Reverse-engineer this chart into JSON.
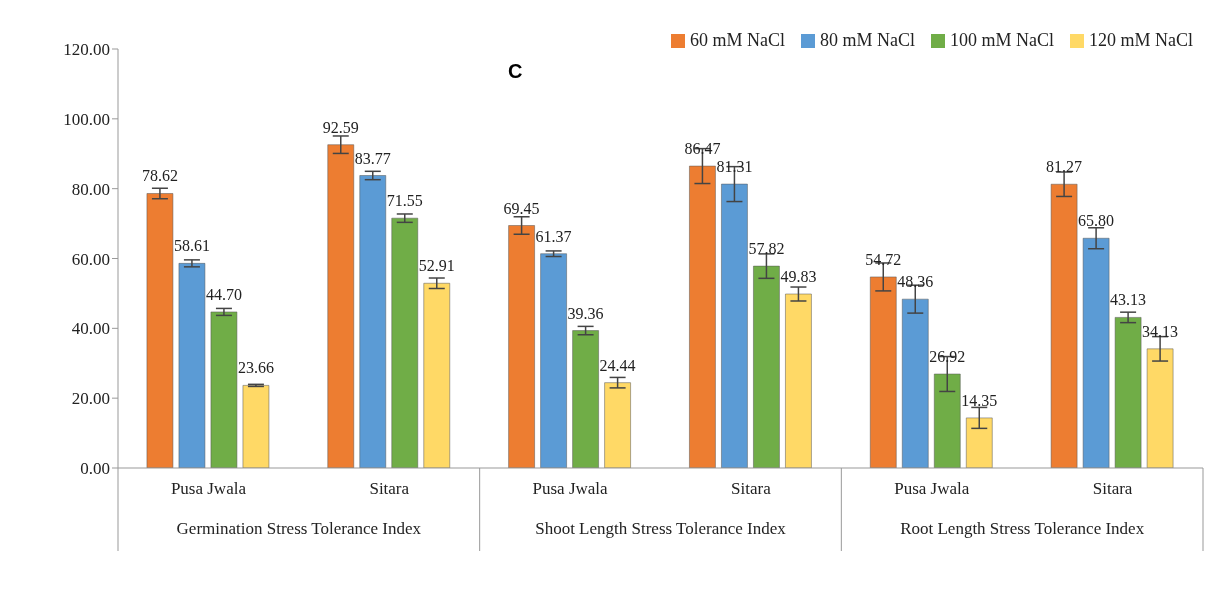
{
  "chart_data": {
    "type": "bar",
    "categories": [
      "Pusa Jwala",
      "Sitara",
      "Pusa Jwala",
      "Sitara",
      "Pusa Jwala",
      "Sitara"
    ],
    "annotations": [
      "C",
      "Germination Stress Tolerance Index",
      "Shoot Length Stress Tolerance Index",
      "Root Length Stress Tolerance Index"
    ],
    "series": [
      {
        "name": "60 mM NaCl",
        "color": "#ed7d31",
        "values": [
          78.62,
          92.59,
          69.45,
          86.47,
          54.72,
          81.27
        ],
        "errors": [
          1.5,
          2.5,
          2.5,
          5,
          4,
          3.5
        ],
        "value_labels": [
          "78.62",
          "92.59",
          "69.45",
          "86.47",
          "54.72",
          "81.27"
        ]
      },
      {
        "name": "80 mM NaCl",
        "color": "#5b9bd5",
        "values": [
          58.61,
          83.77,
          61.37,
          81.31,
          48.36,
          65.8
        ],
        "errors": [
          1,
          1.2,
          0.8,
          5,
          4,
          3
        ],
        "value_labels": [
          "58.61",
          "83.77",
          "61.37",
          "81.31",
          "48.36",
          "65.80"
        ]
      },
      {
        "name": "100 mM NaCl",
        "color": "#70ad47",
        "values": [
          44.7,
          71.55,
          39.36,
          57.82,
          26.92,
          43.13
        ],
        "errors": [
          1,
          1.2,
          1.2,
          3.5,
          5,
          1.5
        ],
        "value_labels": [
          "44.70",
          "71.55",
          "39.36",
          "57.82",
          "26.92",
          "43.13"
        ]
      },
      {
        "name": "120 mM NaCl",
        "color": "#ffd966",
        "values": [
          23.66,
          52.91,
          24.44,
          49.83,
          14.35,
          34.13
        ],
        "errors": [
          0.3,
          1.5,
          1.5,
          2,
          3,
          3.5
        ],
        "value_labels": [
          "23.66",
          "52.91",
          "24.44",
          "49.83",
          "14.35",
          "34.13"
        ]
      }
    ],
    "ylim": [
      0,
      120
    ],
    "yticks": [
      {
        "value": 0,
        "label": "0.00"
      },
      {
        "value": 20,
        "label": "20.00"
      },
      {
        "value": 40,
        "label": "40.00"
      },
      {
        "value": 60,
        "label": "60.00"
      },
      {
        "value": 80,
        "label": "80.00"
      },
      {
        "value": 100,
        "label": "100.00"
      },
      {
        "value": 120,
        "label": "120.00"
      }
    ],
    "grid": false,
    "legend": "top right"
  }
}
